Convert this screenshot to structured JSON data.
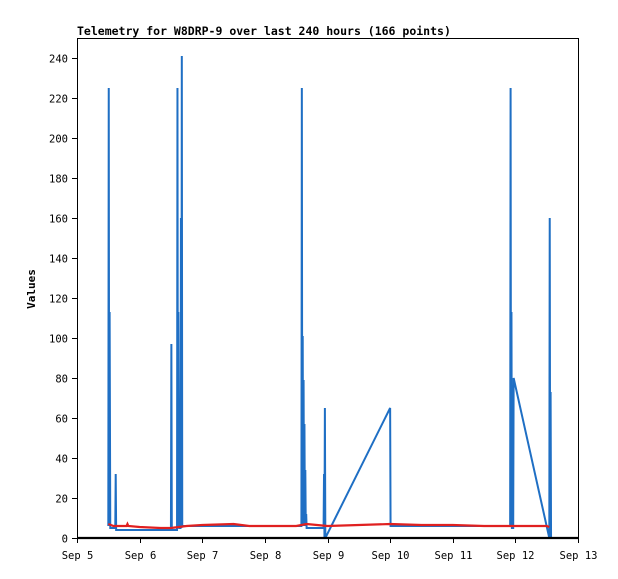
{
  "chart_data": {
    "type": "line",
    "title": "Telemetry for W8DRP-9 over last 240 hours (166 points)",
    "xlabel": "",
    "ylabel": "Values",
    "xlim": [
      "2024-09-05T00:00",
      "2024-09-13T00:00"
    ],
    "ylim": [
      0,
      250
    ],
    "x_ticks": [
      "Sep 5",
      "Sep 6",
      "Sep 7",
      "Sep 8",
      "Sep 9",
      "Sep 10",
      "Sep 11",
      "Sep 12",
      "Sep 13"
    ],
    "y_ticks": [
      0,
      20,
      40,
      60,
      80,
      100,
      120,
      140,
      160,
      180,
      200,
      220,
      240
    ],
    "grid": false,
    "legend": "none",
    "series": [
      {
        "color": "#1f6fc4",
        "points": [
          [
            "2024-09-05T12:00",
            6
          ],
          [
            "2024-09-05T12:10",
            225
          ],
          [
            "2024-09-05T12:20",
            6
          ],
          [
            "2024-09-05T12:30",
            113
          ],
          [
            "2024-09-05T12:45",
            5
          ],
          [
            "2024-09-05T14:40",
            5
          ],
          [
            "2024-09-05T14:50",
            32
          ],
          [
            "2024-09-05T15:00",
            4
          ],
          [
            "2024-09-06T12:00",
            4
          ],
          [
            "2024-09-06T12:10",
            97
          ],
          [
            "2024-09-06T12:20",
            4
          ],
          [
            "2024-09-06T14:20",
            4
          ],
          [
            "2024-09-06T14:30",
            225
          ],
          [
            "2024-09-06T14:40",
            6
          ],
          [
            "2024-09-06T14:50",
            113
          ],
          [
            "2024-09-06T15:10",
            5
          ],
          [
            "2024-09-06T15:40",
            5
          ],
          [
            "2024-09-06T15:50",
            160
          ],
          [
            "2024-09-06T16:00",
            5
          ],
          [
            "2024-09-06T16:10",
            241
          ],
          [
            "2024-09-06T16:20",
            6
          ],
          [
            "2024-09-08T14:00",
            6
          ],
          [
            "2024-09-08T14:10",
            225
          ],
          [
            "2024-09-08T14:20",
            6
          ],
          [
            "2024-09-08T14:30",
            101
          ],
          [
            "2024-09-08T14:40",
            6
          ],
          [
            "2024-09-08T14:50",
            79
          ],
          [
            "2024-09-08T15:00",
            6
          ],
          [
            "2024-09-08T15:10",
            57
          ],
          [
            "2024-09-08T15:20",
            6
          ],
          [
            "2024-09-08T15:30",
            34
          ],
          [
            "2024-09-08T15:40",
            6
          ],
          [
            "2024-09-08T15:50",
            12
          ],
          [
            "2024-09-08T16:00",
            5
          ],
          [
            "2024-09-08T22:30",
            5
          ],
          [
            "2024-09-08T22:40",
            32
          ],
          [
            "2024-09-08T22:50",
            0
          ],
          [
            "2024-09-08T23:00",
            65
          ],
          [
            "2024-09-08T23:10",
            0
          ],
          [
            "2024-09-10T00:00",
            65
          ],
          [
            "2024-09-10T00:10",
            6
          ],
          [
            "2024-09-11T22:00",
            6
          ],
          [
            "2024-09-11T22:10",
            225
          ],
          [
            "2024-09-11T22:20",
            6
          ],
          [
            "2024-09-11T22:30",
            113
          ],
          [
            "2024-09-11T22:40",
            5
          ],
          [
            "2024-09-11T23:10",
            5
          ],
          [
            "2024-09-11T23:20",
            80
          ],
          [
            "2024-09-12T13:00",
            0
          ],
          [
            "2024-09-12T13:10",
            160
          ],
          [
            "2024-09-12T13:20",
            0
          ],
          [
            "2024-09-12T13:30",
            73
          ],
          [
            "2024-09-12T13:40",
            0
          ]
        ]
      },
      {
        "color": "#e02020",
        "points": [
          [
            "2024-09-05T12:00",
            7
          ],
          [
            "2024-09-05T14:00",
            6
          ],
          [
            "2024-09-05T19:00",
            6
          ],
          [
            "2024-09-05T19:20",
            7
          ],
          [
            "2024-09-05T19:40",
            6
          ],
          [
            "2024-09-06T00:00",
            5.5
          ],
          [
            "2024-09-06T08:00",
            5
          ],
          [
            "2024-09-06T12:00",
            5
          ],
          [
            "2024-09-06T18:00",
            6
          ],
          [
            "2024-09-07T00:00",
            6.5
          ],
          [
            "2024-09-07T12:00",
            7
          ],
          [
            "2024-09-07T18:00",
            6
          ],
          [
            "2024-09-08T12:00",
            6
          ],
          [
            "2024-09-08T16:00",
            7
          ],
          [
            "2024-09-09T00:00",
            6
          ],
          [
            "2024-09-09T12:00",
            6.5
          ],
          [
            "2024-09-10T00:00",
            7
          ],
          [
            "2024-09-10T12:00",
            6.5
          ],
          [
            "2024-09-11T00:00",
            6.5
          ],
          [
            "2024-09-11T12:00",
            6
          ],
          [
            "2024-09-12T00:00",
            6
          ],
          [
            "2024-09-12T12:00",
            6
          ],
          [
            "2024-09-12T13:00",
            5.5
          ]
        ]
      },
      {
        "color": "#000000",
        "points": [
          [
            "2024-09-05T00:00",
            0
          ],
          [
            "2024-09-13T00:00",
            0
          ]
        ]
      }
    ]
  }
}
